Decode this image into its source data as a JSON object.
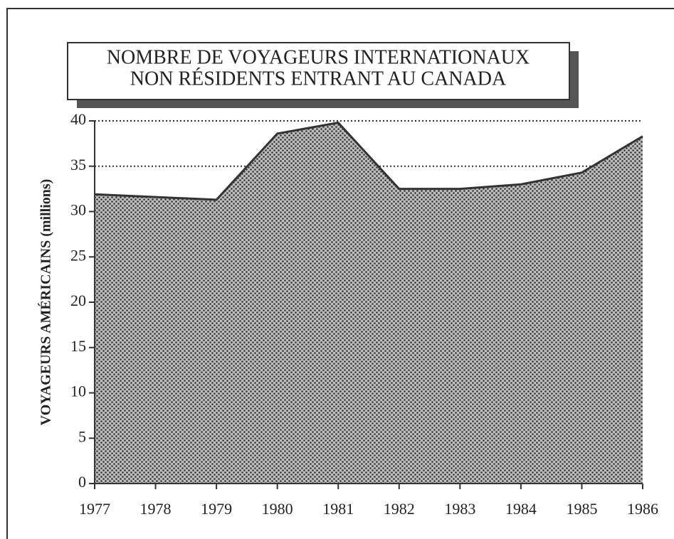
{
  "chart_data": {
    "type": "area",
    "title_lines": [
      "NOMBRE DE VOYAGEURS INTERNATIONAUX",
      "NON RÉSIDENTS ENTRANT AU CANADA"
    ],
    "y_label": "VOYAGEURS AMÉRICAINS (millions)",
    "categories": [
      "1977",
      "1978",
      "1979",
      "1980",
      "1981",
      "1982",
      "1983",
      "1984",
      "1985",
      "1986"
    ],
    "values": [
      31.9,
      31.6,
      31.3,
      38.6,
      39.8,
      32.5,
      32.5,
      33.0,
      34.3,
      38.3
    ],
    "color": "#9a9a9a",
    "ylim": [
      0,
      40
    ],
    "yticks": [
      0,
      5,
      10,
      15,
      20,
      25,
      30,
      35,
      40
    ],
    "grid": true
  }
}
